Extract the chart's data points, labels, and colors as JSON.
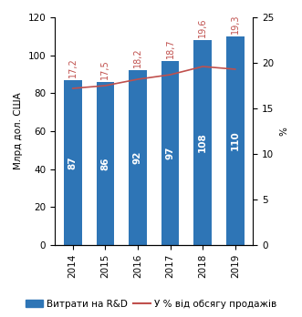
{
  "years": [
    2014,
    2015,
    2016,
    2017,
    2018,
    2019
  ],
  "bar_values": [
    87,
    86,
    92,
    97,
    108,
    110
  ],
  "line_values": [
    17.2,
    17.5,
    18.2,
    18.7,
    19.6,
    19.3
  ],
  "line_labels": [
    "17,2",
    "17,5",
    "18,2",
    "18,7",
    "19,6",
    "19,3"
  ],
  "bar_labels": [
    "87",
    "86",
    "92",
    "97",
    "108",
    "110"
  ],
  "bar_color": "#2E75B6",
  "line_color": "#C0504D",
  "bar_label_color": "white",
  "bg_color": "#ffffff",
  "ylabel_left": "Млрд дол. США",
  "ylabel_right": "%",
  "ylim_left": [
    0,
    120
  ],
  "ylim_right": [
    0,
    25
  ],
  "yticks_left": [
    0,
    20,
    40,
    60,
    80,
    100,
    120
  ],
  "yticks_right": [
    0,
    5,
    10,
    15,
    20,
    25
  ],
  "legend_bar": "Витрати на R&D",
  "legend_line": "У % від обсягу продажів",
  "bar_fontsize": 7.5,
  "line_label_fontsize": 7.0,
  "axis_fontsize": 7.5,
  "legend_fontsize": 7.5,
  "bar_width": 0.55
}
